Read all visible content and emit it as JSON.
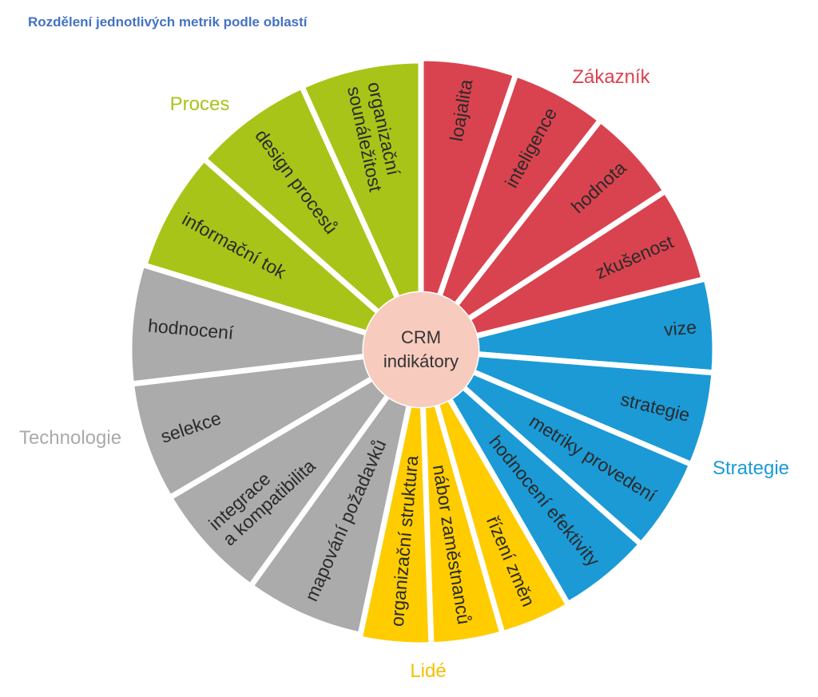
{
  "title": "Rozdělení jednotlivých metrik podle oblastí",
  "center": {
    "line1": "CRM",
    "line2": "indikátory",
    "color": "#F7CBBE"
  },
  "groups": [
    {
      "name": "Zákazník",
      "color": "#D9434F",
      "label_color": "#D9434F",
      "segments": [
        [
          "loajalita"
        ],
        [
          "inteligence"
        ],
        [
          "hodnota"
        ],
        [
          "zkušenost"
        ]
      ]
    },
    {
      "name": "Strategie",
      "color": "#1B9AD6",
      "label_color": "#1B9AD6",
      "segments": [
        [
          "vize"
        ],
        [
          "strategie"
        ],
        [
          "metriky provedení"
        ],
        [
          "hodnocení efektivity"
        ]
      ]
    },
    {
      "name": "Lidé",
      "color": "#FFCC00",
      "label_color": "#F5C000",
      "segments": [
        [
          "řízení změn"
        ],
        [
          "nábor zaměstnanců"
        ],
        [
          "organizační struktura"
        ]
      ]
    },
    {
      "name": "Technologie",
      "color": "#ABABAB",
      "label_color": "#AAAAAA",
      "segments": [
        [
          "mapování požadavků"
        ],
        [
          "integrace",
          "a kompatibilita"
        ],
        [
          "selekce"
        ],
        [
          "hodnocení"
        ]
      ]
    },
    {
      "name": "Proces",
      "color": "#A9C418",
      "label_color": "#A9C418",
      "segments": [
        [
          "informační tok"
        ],
        [
          "design procesů"
        ],
        [
          "organizační",
          "sounáležitost"
        ]
      ]
    }
  ]
}
